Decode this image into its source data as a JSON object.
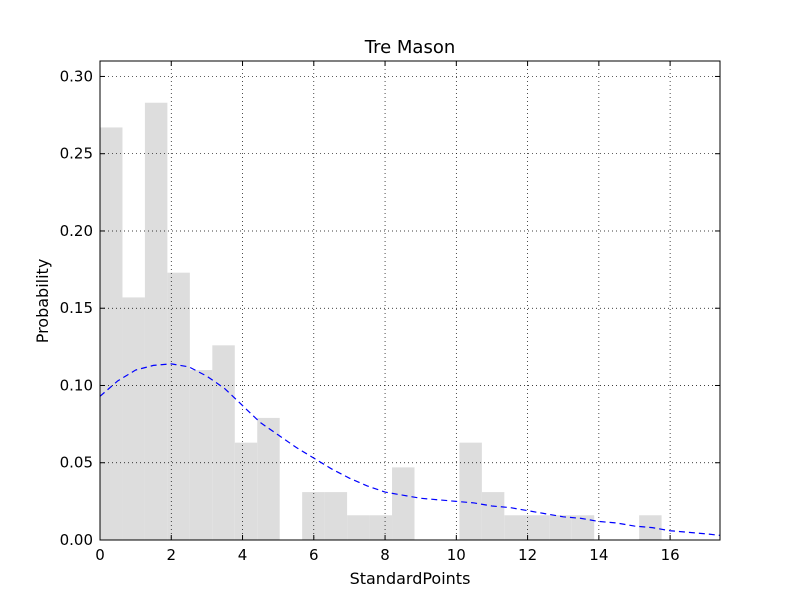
{
  "chart_data": {
    "type": "bar",
    "title": "Tre Mason",
    "xlabel": "StandardPoints",
    "ylabel": "Probability",
    "xlim": [
      0,
      17.4
    ],
    "ylim": [
      0,
      0.31
    ],
    "xticks": [
      0,
      2,
      4,
      6,
      8,
      10,
      12,
      14,
      16
    ],
    "yticks": [
      0.0,
      0.05,
      0.1,
      0.15,
      0.2,
      0.25,
      0.3
    ],
    "ytick_labels": [
      "0.00",
      "0.05",
      "0.10",
      "0.15",
      "0.20",
      "0.25",
      "0.30"
    ],
    "grid": true,
    "histogram": {
      "bin_width": 0.6304,
      "color": "#dddddd",
      "bins": [
        {
          "x0": 0.0,
          "value": 0.267
        },
        {
          "x0": 0.6304,
          "value": 0.157
        },
        {
          "x0": 1.2609,
          "value": 0.283
        },
        {
          "x0": 1.8913,
          "value": 0.173
        },
        {
          "x0": 2.5217,
          "value": 0.11
        },
        {
          "x0": 3.1522,
          "value": 0.126
        },
        {
          "x0": 3.7826,
          "value": 0.063
        },
        {
          "x0": 4.413,
          "value": 0.079
        },
        {
          "x0": 5.0435,
          "value": 0.0
        },
        {
          "x0": 5.6739,
          "value": 0.031
        },
        {
          "x0": 6.3043,
          "value": 0.031
        },
        {
          "x0": 6.9348,
          "value": 0.016
        },
        {
          "x0": 7.5652,
          "value": 0.016
        },
        {
          "x0": 8.1957,
          "value": 0.047
        },
        {
          "x0": 8.8261,
          "value": 0.0
        },
        {
          "x0": 9.4565,
          "value": 0.0
        },
        {
          "x0": 10.087,
          "value": 0.063
        },
        {
          "x0": 10.7174,
          "value": 0.031
        },
        {
          "x0": 11.3478,
          "value": 0.016
        },
        {
          "x0": 11.9783,
          "value": 0.016
        },
        {
          "x0": 12.6087,
          "value": 0.016
        },
        {
          "x0": 13.2391,
          "value": 0.016
        },
        {
          "x0": 13.8696,
          "value": 0.0
        },
        {
          "x0": 14.5,
          "value": 0.0
        },
        {
          "x0": 15.1304,
          "value": 0.016
        }
      ]
    },
    "density_curve": {
      "color": "#0000ff",
      "style": "dashed",
      "x": [
        0,
        0.5,
        1.0,
        1.5,
        2.0,
        2.5,
        3.0,
        3.5,
        4.0,
        4.5,
        5.0,
        5.5,
        6.0,
        6.5,
        7.0,
        7.5,
        8.0,
        8.5,
        9.0,
        9.5,
        10.0,
        10.5,
        11.0,
        11.5,
        12.0,
        12.5,
        13.0,
        13.5,
        14.0,
        14.5,
        15.0,
        15.5,
        16.0,
        16.5,
        17.0,
        17.4
      ],
      "y": [
        0.093,
        0.103,
        0.11,
        0.113,
        0.114,
        0.112,
        0.106,
        0.098,
        0.087,
        0.076,
        0.068,
        0.06,
        0.053,
        0.046,
        0.04,
        0.035,
        0.031,
        0.029,
        0.027,
        0.026,
        0.025,
        0.024,
        0.022,
        0.021,
        0.019,
        0.017,
        0.015,
        0.014,
        0.012,
        0.011,
        0.009,
        0.008,
        0.006,
        0.005,
        0.004,
        0.003
      ]
    }
  }
}
